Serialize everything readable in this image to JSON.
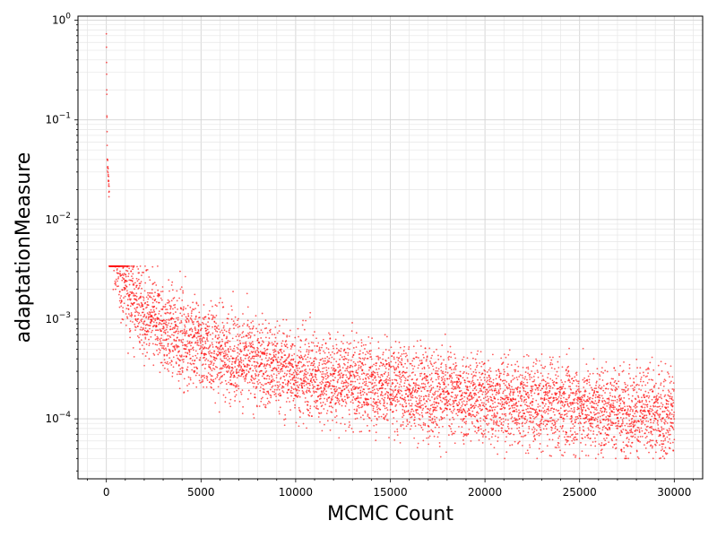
{
  "chart_data": {
    "type": "scatter",
    "title": "",
    "xlabel": "MCMC Count",
    "ylabel": "adaptationMeasure",
    "yscale": "log",
    "xlim": [
      -1500,
      31500
    ],
    "ylim": [
      2.5e-05,
      1.1
    ],
    "grid": "on (major and minor)",
    "marker_color": "#ff0000",
    "x_ticks": [
      0,
      5000,
      10000,
      15000,
      20000,
      25000,
      30000
    ],
    "y_ticks": [
      0.0001,
      0.001,
      0.01,
      0.1,
      1
    ],
    "y_tick_labels": [
      {
        "base": "10",
        "exp": "−4"
      },
      {
        "base": "10",
        "exp": "−3"
      },
      {
        "base": "10",
        "exp": "−2"
      },
      {
        "base": "10",
        "exp": "−1"
      },
      {
        "base": "10",
        "exp": "0"
      }
    ],
    "series": [
      {
        "x_start": 0,
        "x_end": 30000,
        "x_step": 5,
        "trend_x": [
          0,
          50,
          200,
          500,
          1000,
          2000,
          3000,
          5000,
          7500,
          10000,
          12500,
          15000,
          17500,
          20000,
          22500,
          25000,
          27500,
          30000
        ],
        "trend_y": [
          0.65,
          0.04,
          0.012,
          0.004,
          0.0022,
          0.0011,
          0.0008,
          0.00055,
          0.00038,
          0.00029,
          0.00024,
          0.00021,
          0.00018,
          0.00016,
          0.00014,
          0.00013,
          0.00012,
          0.00011
        ],
        "spread_y_min": 4e-05,
        "spread_y_max": 0.0034
      }
    ]
  }
}
